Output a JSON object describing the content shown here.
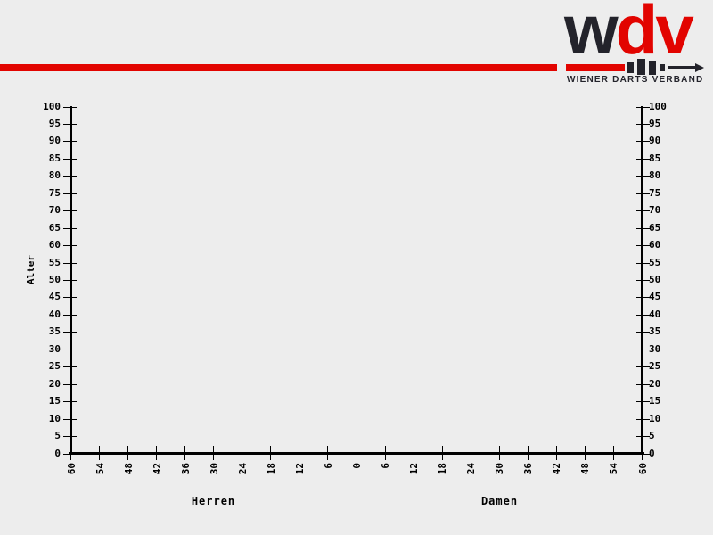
{
  "theme": {
    "bg": "#ededed",
    "red": "#e20400",
    "dark": "#23232b",
    "axis": "#000000"
  },
  "header": {
    "logo": {
      "letters": [
        {
          "char": "w",
          "color": "#23232b"
        },
        {
          "char": "d",
          "color": "#e20400"
        },
        {
          "char": "v",
          "color": "#e20400"
        }
      ],
      "tagline": "WIENER DARTS VERBAND"
    }
  },
  "chart_data": {
    "type": "bar",
    "subtype": "population-pyramid",
    "title": "",
    "ylabel": "Alter",
    "left_group_label": "Herren",
    "right_group_label": "Damen",
    "y_axis": {
      "label": "Alter",
      "min": 0,
      "max": 100,
      "step": 5,
      "ticks": [
        0,
        5,
        10,
        15,
        20,
        25,
        30,
        35,
        40,
        45,
        50,
        55,
        60,
        65,
        70,
        75,
        80,
        85,
        90,
        95,
        100
      ]
    },
    "x_axis": {
      "step": 6,
      "max_each_side": 60,
      "labels": [
        "60",
        "54",
        "48",
        "42",
        "36",
        "30",
        "24",
        "18",
        "12",
        "6",
        "0",
        "6",
        "12",
        "18",
        "24",
        "30",
        "36",
        "42",
        "48",
        "54",
        "60"
      ]
    },
    "series": [
      {
        "name": "Herren",
        "side": "left",
        "values": []
      },
      {
        "name": "Damen",
        "side": "right",
        "values": []
      }
    ],
    "center_line_at": 0,
    "grid": false,
    "legend": false
  }
}
